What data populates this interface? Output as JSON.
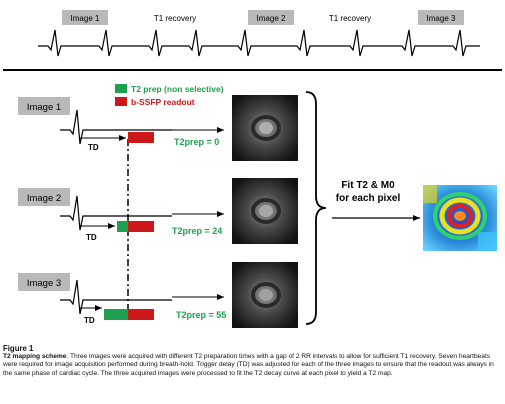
{
  "top_timeline": {
    "labels": [
      "Image 1",
      "T1 recovery",
      "Image 2",
      "T1 recovery",
      "Image 3"
    ]
  },
  "legend": {
    "t2prep": "T2 prep (non selective)",
    "readout": "b-SSFP readout",
    "t2prep_color": "#1fa050",
    "readout_color": "#cc1818"
  },
  "rows": [
    {
      "label": "Image 1",
      "td": "TD",
      "t2prep": "T2prep = 0"
    },
    {
      "label": "Image 2",
      "td": "TD",
      "t2prep": "T2prep = 24"
    },
    {
      "label": "Image 3",
      "td": "TD",
      "t2prep": "T2prep = 55"
    }
  ],
  "fit": {
    "line1": "Fit T2 & M0",
    "line2": "for each pixel"
  },
  "caption": {
    "figure_label": "Figure 1",
    "title": "T2 mapping scheme",
    "text": ". Three images were acquired with different T2 preparation times with a gap of 2 RR intervals to allow for sufficient T1 recovery. Seven heartbeats were required for image acquisition performed during breath-hold. Trigger delay (TD) was adjusted for each of the three images to ensure that the readout was always in the same phase of cardiac cycle. The three acquired images were processed to fit the T2 decay curve at each pixel to yield a T2 map."
  }
}
